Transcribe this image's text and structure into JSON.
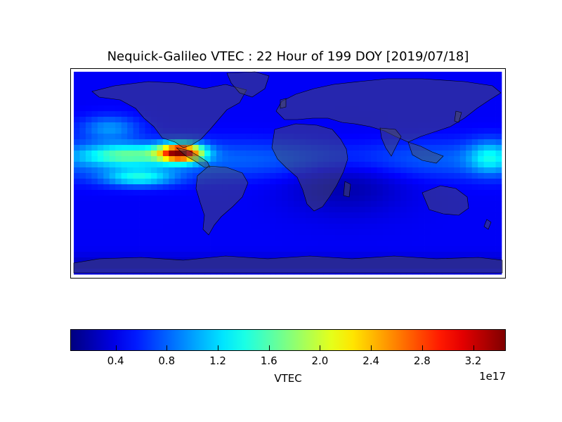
{
  "title": "Nequick-Galileo VTEC : 22 Hour of 199 DOY [2019/07/18]",
  "colorbar": {
    "label": "VTEC",
    "exponent": "1e17",
    "vmin": 0.05,
    "vmax": 3.45,
    "ticks": [
      "0.4",
      "0.8",
      "1.2",
      "1.6",
      "2.0",
      "2.4",
      "2.8",
      "3.2"
    ],
    "colormap": "jet"
  },
  "map": {
    "projection": "plate-carree",
    "extent": {
      "lon": [
        -180,
        180
      ],
      "lat": [
        -90,
        90
      ]
    },
    "ocean_color": "#0000ff",
    "land_overlay": "#4a4a4a",
    "peak": {
      "lon": -90,
      "lat": 18,
      "value": 3.4
    }
  }
}
